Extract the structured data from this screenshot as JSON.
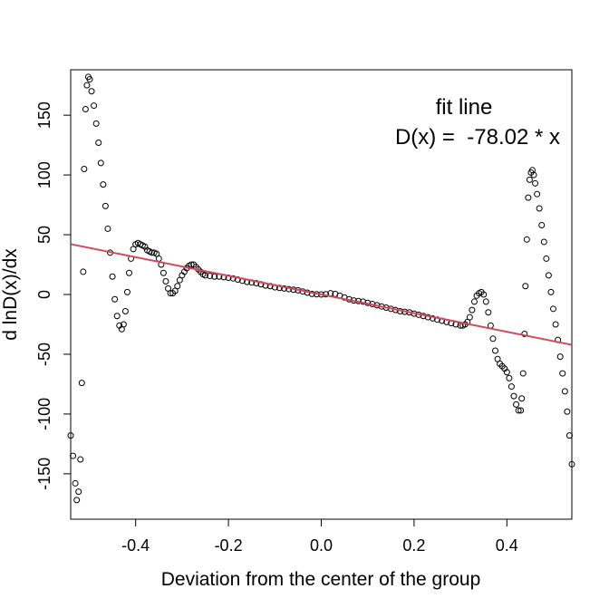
{
  "chart_data": {
    "type": "scatter",
    "title": "",
    "xlabel": "Deviation from the center of the group",
    "ylabel": "d lnD(x)/dx",
    "xlim": [
      -0.54,
      0.54
    ],
    "ylim": [
      -188,
      188
    ],
    "x_ticks": [
      -0.4,
      -0.2,
      0.0,
      0.2,
      0.4
    ],
    "x_tick_labels": [
      "-0.4",
      "-0.2",
      "0.0",
      "0.2",
      "0.4"
    ],
    "y_ticks": [
      -150,
      -100,
      -50,
      0,
      50,
      100,
      150
    ],
    "y_tick_labels": [
      "-150",
      "-100",
      "-50",
      "0",
      "50",
      "100",
      "150"
    ],
    "grid": false,
    "annotation": {
      "line1": "fit line",
      "line2": "D(x) =  -78.02 * x"
    },
    "fit_line": {
      "name": "fit line",
      "slope": -78.02,
      "intercept": 0,
      "color": "#d1495b"
    },
    "series": [
      {
        "name": "data",
        "marker": "open-circle",
        "color": "#000000",
        "points": [
          [
            -0.54,
            -118
          ],
          [
            -0.535,
            -135
          ],
          [
            -0.53,
            -158
          ],
          [
            -0.527,
            -172
          ],
          [
            -0.523,
            -165
          ],
          [
            -0.519,
            -138
          ],
          [
            -0.516,
            -74
          ],
          [
            -0.513,
            19
          ],
          [
            -0.511,
            105
          ],
          [
            -0.508,
            155
          ],
          [
            -0.505,
            175
          ],
          [
            -0.502,
            182
          ],
          [
            -0.499,
            180
          ],
          [
            -0.495,
            170
          ],
          [
            -0.49,
            158
          ],
          [
            -0.485,
            143
          ],
          [
            -0.48,
            127
          ],
          [
            -0.475,
            110
          ],
          [
            -0.47,
            92
          ],
          [
            -0.465,
            74
          ],
          [
            -0.46,
            55
          ],
          [
            -0.455,
            35
          ],
          [
            -0.45,
            15
          ],
          [
            -0.445,
            -4
          ],
          [
            -0.44,
            -18
          ],
          [
            -0.435,
            -26
          ],
          [
            -0.43,
            -29
          ],
          [
            -0.426,
            -25
          ],
          [
            -0.422,
            -14
          ],
          [
            -0.418,
            2
          ],
          [
            -0.414,
            18
          ],
          [
            -0.41,
            30
          ],
          [
            -0.405,
            38
          ],
          [
            -0.4,
            42
          ],
          [
            -0.395,
            43
          ],
          [
            -0.39,
            42
          ],
          [
            -0.385,
            41
          ],
          [
            -0.38,
            40
          ],
          [
            -0.375,
            37
          ],
          [
            -0.37,
            36
          ],
          [
            -0.365,
            35
          ],
          [
            -0.36,
            35
          ],
          [
            -0.355,
            34
          ],
          [
            -0.35,
            30
          ],
          [
            -0.345,
            25
          ],
          [
            -0.34,
            18
          ],
          [
            -0.335,
            11
          ],
          [
            -0.33,
            5
          ],
          [
            -0.325,
            1
          ],
          [
            -0.32,
            1
          ],
          [
            -0.315,
            3
          ],
          [
            -0.31,
            7
          ],
          [
            -0.305,
            12
          ],
          [
            -0.3,
            16
          ],
          [
            -0.295,
            19
          ],
          [
            -0.29,
            22
          ],
          [
            -0.285,
            24
          ],
          [
            -0.28,
            25
          ],
          [
            -0.275,
            25
          ],
          [
            -0.27,
            23
          ],
          [
            -0.265,
            21
          ],
          [
            -0.26,
            19
          ],
          [
            -0.255,
            17
          ],
          [
            -0.25,
            16
          ],
          [
            -0.24,
            15.5
          ],
          [
            -0.23,
            15
          ],
          [
            -0.22,
            15
          ],
          [
            -0.21,
            14.5
          ],
          [
            -0.2,
            14
          ],
          [
            -0.19,
            13.5
          ],
          [
            -0.18,
            12.5
          ],
          [
            -0.17,
            11.5
          ],
          [
            -0.16,
            10.5
          ],
          [
            -0.15,
            10
          ],
          [
            -0.14,
            9.5
          ],
          [
            -0.13,
            8.5
          ],
          [
            -0.12,
            7.5
          ],
          [
            -0.11,
            7
          ],
          [
            -0.1,
            6
          ],
          [
            -0.09,
            5.5
          ],
          [
            -0.08,
            5
          ],
          [
            -0.07,
            4.5
          ],
          [
            -0.06,
            4
          ],
          [
            -0.05,
            3.5
          ],
          [
            -0.04,
            2.5
          ],
          [
            -0.03,
            1.5
          ],
          [
            -0.02,
            0.5
          ],
          [
            -0.01,
            0.2
          ],
          [
            0.0,
            0
          ],
          [
            0.01,
            0.2
          ],
          [
            0.02,
            1
          ],
          [
            0.03,
            0.5
          ],
          [
            0.04,
            -1
          ],
          [
            0.05,
            -2.5
          ],
          [
            0.06,
            -4
          ],
          [
            0.07,
            -5
          ],
          [
            0.08,
            -5.5
          ],
          [
            0.09,
            -6
          ],
          [
            0.1,
            -7
          ],
          [
            0.11,
            -8
          ],
          [
            0.12,
            -9
          ],
          [
            0.13,
            -10
          ],
          [
            0.14,
            -11
          ],
          [
            0.15,
            -12
          ],
          [
            0.16,
            -13
          ],
          [
            0.17,
            -14
          ],
          [
            0.18,
            -14.5
          ],
          [
            0.19,
            -15
          ],
          [
            0.2,
            -16
          ],
          [
            0.21,
            -17
          ],
          [
            0.22,
            -18
          ],
          [
            0.23,
            -19
          ],
          [
            0.24,
            -20
          ],
          [
            0.25,
            -21
          ],
          [
            0.26,
            -22
          ],
          [
            0.27,
            -23
          ],
          [
            0.28,
            -24
          ],
          [
            0.29,
            -25
          ],
          [
            0.3,
            -26
          ],
          [
            0.305,
            -26
          ],
          [
            0.31,
            -25
          ],
          [
            0.315,
            -23
          ],
          [
            0.32,
            -19
          ],
          [
            0.325,
            -13
          ],
          [
            0.33,
            -6
          ],
          [
            0.335,
            -1
          ],
          [
            0.34,
            1
          ],
          [
            0.345,
            2
          ],
          [
            0.35,
            0
          ],
          [
            0.355,
            -6
          ],
          [
            0.36,
            -15
          ],
          [
            0.365,
            -26
          ],
          [
            0.37,
            -37
          ],
          [
            0.375,
            -47
          ],
          [
            0.38,
            -54
          ],
          [
            0.385,
            -58
          ],
          [
            0.39,
            -60
          ],
          [
            0.395,
            -62
          ],
          [
            0.4,
            -65
          ],
          [
            0.405,
            -70
          ],
          [
            0.41,
            -77
          ],
          [
            0.415,
            -85
          ],
          [
            0.42,
            -92
          ],
          [
            0.425,
            -97
          ],
          [
            0.43,
            -97
          ],
          [
            0.432,
            -87
          ],
          [
            0.435,
            -66
          ],
          [
            0.438,
            -33
          ],
          [
            0.44,
            7
          ],
          [
            0.443,
            46
          ],
          [
            0.446,
            81
          ],
          [
            0.449,
            96
          ],
          [
            0.452,
            102
          ],
          [
            0.455,
            104
          ],
          [
            0.458,
            100
          ],
          [
            0.461,
            93
          ],
          [
            0.465,
            84
          ],
          [
            0.47,
            72
          ],
          [
            0.475,
            58
          ],
          [
            0.48,
            44
          ],
          [
            0.485,
            30
          ],
          [
            0.49,
            16
          ],
          [
            0.495,
            2
          ],
          [
            0.5,
            -12
          ],
          [
            0.505,
            -25
          ],
          [
            0.51,
            -38
          ],
          [
            0.515,
            -52
          ],
          [
            0.52,
            -66
          ],
          [
            0.525,
            -81
          ],
          [
            0.53,
            -98
          ],
          [
            0.535,
            -118
          ],
          [
            0.54,
            -142
          ]
        ]
      }
    ]
  }
}
